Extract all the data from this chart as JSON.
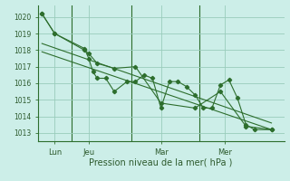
{
  "title": "",
  "xlabel": "Pression niveau de la mer( hPa )",
  "background_color": "#cceee8",
  "grid_color": "#99ccbb",
  "line_color": "#2d6e2d",
  "text_color": "#2d5a2d",
  "ylim": [
    1012.5,
    1020.7
  ],
  "xlim": [
    -0.5,
    28.5
  ],
  "yticks": [
    1013,
    1014,
    1015,
    1016,
    1017,
    1018,
    1019,
    1020
  ],
  "xtick_positions": [
    1.5,
    5.5,
    14,
    21.5
  ],
  "xtick_labels": [
    "Lun",
    "Jeu",
    "Mar",
    "Mer"
  ],
  "vlines": [
    3.5,
    10.5,
    18.5
  ],
  "series1_x": [
    0,
    1.5,
    5,
    5.5,
    6,
    6.5,
    7.5,
    8.5,
    10,
    11,
    12,
    13,
    14,
    15,
    16,
    17,
    18,
    19,
    20,
    21,
    22,
    23,
    24,
    25,
    27
  ],
  "series1_y": [
    1020.2,
    1019.0,
    1018.1,
    1017.5,
    1016.7,
    1016.3,
    1016.3,
    1015.5,
    1016.1,
    1016.1,
    1016.5,
    1016.3,
    1014.5,
    1016.1,
    1016.1,
    1015.8,
    1015.3,
    1014.5,
    1014.5,
    1015.9,
    1016.2,
    1015.1,
    1013.5,
    1013.2,
    1013.2
  ],
  "series2_x": [
    0,
    1.5,
    5,
    5.5,
    6.5,
    8.5,
    11,
    14,
    18,
    21,
    24,
    27
  ],
  "series2_y": [
    1020.2,
    1019.0,
    1018.0,
    1017.8,
    1017.2,
    1016.9,
    1017.0,
    1014.8,
    1014.5,
    1015.5,
    1013.4,
    1013.2
  ],
  "trend_x": [
    0,
    27
  ],
  "trend_y": [
    1017.9,
    1013.2
  ],
  "trend2_x": [
    0,
    27
  ],
  "trend2_y": [
    1018.4,
    1013.6
  ],
  "ytick_fontsize": 5.5,
  "xtick_fontsize": 6,
  "xlabel_fontsize": 7
}
